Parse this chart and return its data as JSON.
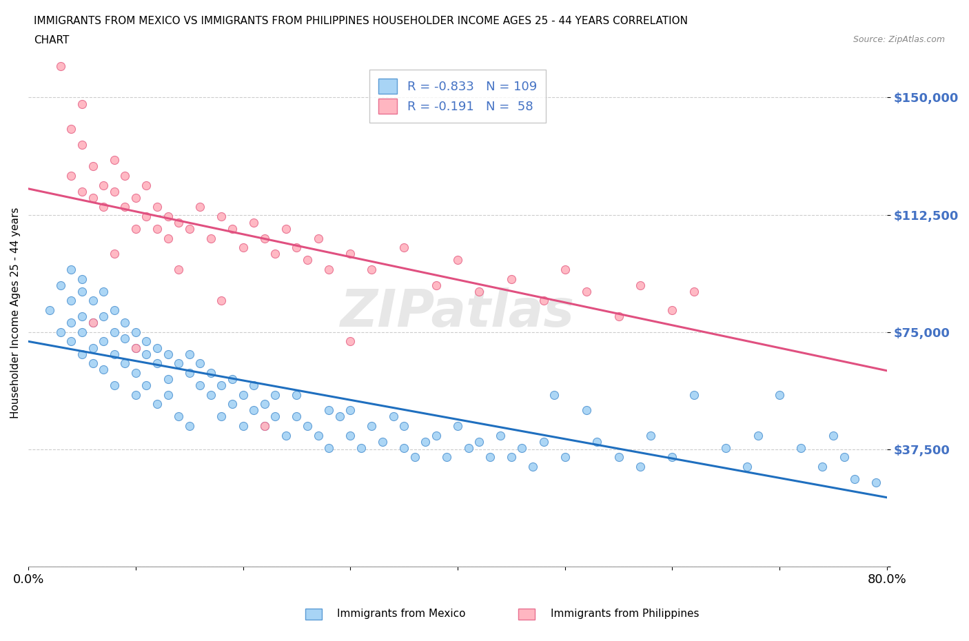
{
  "title_line1": "IMMIGRANTS FROM MEXICO VS IMMIGRANTS FROM PHILIPPINES HOUSEHOLDER INCOME AGES 25 - 44 YEARS CORRELATION",
  "title_line2": "CHART",
  "source_text": "Source: ZipAtlas.com",
  "ylabel": "Householder Income Ages 25 - 44 years",
  "x_min": 0.0,
  "x_max": 0.8,
  "y_min": 0,
  "y_max": 162500,
  "y_ticks": [
    0,
    37500,
    75000,
    112500,
    150000
  ],
  "y_tick_labels": [
    "",
    "$37,500",
    "$75,000",
    "$112,500",
    "$150,000"
  ],
  "x_ticks": [
    0.0,
    0.1,
    0.2,
    0.3,
    0.4,
    0.5,
    0.6,
    0.7,
    0.8
  ],
  "mexico_color": "#A8D4F5",
  "mexico_edge_color": "#5B9BD5",
  "philippines_color": "#FFB6C1",
  "philippines_edge_color": "#E87090",
  "mexico_line_color": "#1F6FBF",
  "philippines_line_color": "#E05080",
  "mexico_R": -0.833,
  "mexico_N": 109,
  "philippines_R": -0.191,
  "philippines_N": 58,
  "grid_color": "#CCCCCC",
  "background_color": "#FFFFFF",
  "watermark": "ZIPatlas",
  "legend_color": "#4472C4",
  "ytick_color": "#4472C4",
  "mexico_x": [
    0.02,
    0.03,
    0.03,
    0.04,
    0.04,
    0.04,
    0.04,
    0.05,
    0.05,
    0.05,
    0.05,
    0.05,
    0.06,
    0.06,
    0.06,
    0.06,
    0.07,
    0.07,
    0.07,
    0.07,
    0.08,
    0.08,
    0.08,
    0.08,
    0.09,
    0.09,
    0.09,
    0.1,
    0.1,
    0.1,
    0.1,
    0.11,
    0.11,
    0.11,
    0.12,
    0.12,
    0.12,
    0.13,
    0.13,
    0.13,
    0.14,
    0.14,
    0.15,
    0.15,
    0.15,
    0.16,
    0.16,
    0.17,
    0.17,
    0.18,
    0.18,
    0.19,
    0.19,
    0.2,
    0.2,
    0.21,
    0.21,
    0.22,
    0.22,
    0.23,
    0.23,
    0.24,
    0.25,
    0.25,
    0.26,
    0.27,
    0.28,
    0.28,
    0.29,
    0.3,
    0.3,
    0.31,
    0.32,
    0.33,
    0.34,
    0.35,
    0.35,
    0.36,
    0.37,
    0.38,
    0.39,
    0.4,
    0.41,
    0.42,
    0.43,
    0.44,
    0.45,
    0.46,
    0.47,
    0.48,
    0.49,
    0.5,
    0.52,
    0.53,
    0.55,
    0.57,
    0.58,
    0.6,
    0.62,
    0.65,
    0.67,
    0.68,
    0.7,
    0.72,
    0.74,
    0.75,
    0.76,
    0.77,
    0.79
  ],
  "mexico_y": [
    82000,
    75000,
    90000,
    72000,
    85000,
    95000,
    78000,
    68000,
    80000,
    88000,
    75000,
    92000,
    70000,
    78000,
    85000,
    65000,
    72000,
    80000,
    88000,
    63000,
    75000,
    68000,
    82000,
    58000,
    73000,
    65000,
    78000,
    62000,
    70000,
    75000,
    55000,
    68000,
    72000,
    58000,
    65000,
    70000,
    52000,
    60000,
    68000,
    55000,
    65000,
    48000,
    62000,
    68000,
    45000,
    58000,
    65000,
    55000,
    62000,
    48000,
    58000,
    52000,
    60000,
    45000,
    55000,
    50000,
    58000,
    45000,
    52000,
    48000,
    55000,
    42000,
    48000,
    55000,
    45000,
    42000,
    50000,
    38000,
    48000,
    42000,
    50000,
    38000,
    45000,
    40000,
    48000,
    38000,
    45000,
    35000,
    40000,
    42000,
    35000,
    45000,
    38000,
    40000,
    35000,
    42000,
    35000,
    38000,
    32000,
    40000,
    55000,
    35000,
    50000,
    40000,
    35000,
    32000,
    42000,
    35000,
    55000,
    38000,
    32000,
    42000,
    55000,
    38000,
    32000,
    42000,
    35000,
    28000,
    27000
  ],
  "philippines_x": [
    0.03,
    0.04,
    0.04,
    0.05,
    0.05,
    0.05,
    0.06,
    0.06,
    0.07,
    0.07,
    0.08,
    0.08,
    0.09,
    0.09,
    0.1,
    0.1,
    0.11,
    0.11,
    0.12,
    0.12,
    0.13,
    0.13,
    0.14,
    0.15,
    0.16,
    0.17,
    0.18,
    0.19,
    0.2,
    0.21,
    0.22,
    0.23,
    0.24,
    0.25,
    0.26,
    0.27,
    0.28,
    0.3,
    0.32,
    0.35,
    0.38,
    0.4,
    0.42,
    0.45,
    0.48,
    0.5,
    0.52,
    0.55,
    0.57,
    0.6,
    0.62,
    0.3,
    0.22,
    0.18,
    0.14,
    0.1,
    0.08,
    0.06
  ],
  "philippines_y": [
    160000,
    140000,
    125000,
    148000,
    120000,
    135000,
    118000,
    128000,
    122000,
    115000,
    120000,
    130000,
    115000,
    125000,
    118000,
    108000,
    112000,
    122000,
    108000,
    115000,
    112000,
    105000,
    110000,
    108000,
    115000,
    105000,
    112000,
    108000,
    102000,
    110000,
    105000,
    100000,
    108000,
    102000,
    98000,
    105000,
    95000,
    100000,
    95000,
    102000,
    90000,
    98000,
    88000,
    92000,
    85000,
    95000,
    88000,
    80000,
    90000,
    82000,
    88000,
    72000,
    45000,
    85000,
    95000,
    70000,
    100000,
    78000
  ]
}
